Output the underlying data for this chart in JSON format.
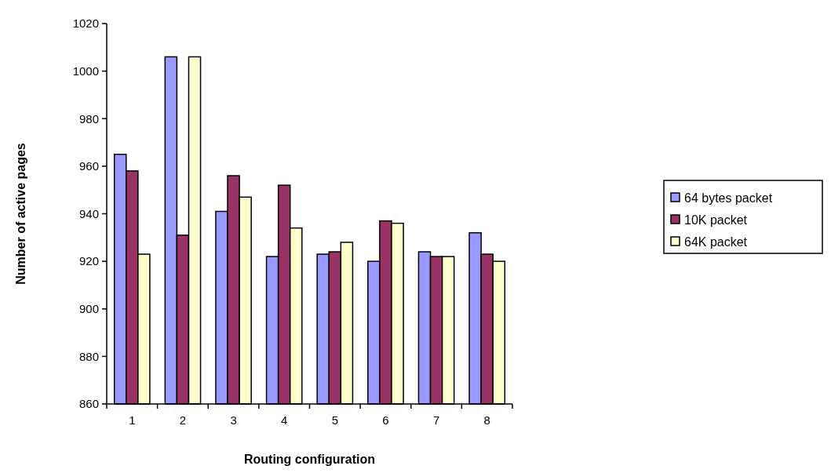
{
  "chart_data": {
    "type": "bar",
    "xlabel": "Routing configuration",
    "ylabel": "Number of active pages",
    "categories": [
      "1",
      "2",
      "3",
      "4",
      "5",
      "6",
      "7",
      "8"
    ],
    "series": [
      {
        "name": "64 bytes packet",
        "color": "#9999ff",
        "values": [
          965,
          1006,
          941,
          922,
          923,
          920,
          924,
          932
        ]
      },
      {
        "name": "10K packet",
        "color": "#993366",
        "values": [
          958,
          931,
          956,
          952,
          924,
          937,
          922,
          923
        ]
      },
      {
        "name": "64K packet",
        "color": "#ffffcc",
        "values": [
          923,
          1006,
          947,
          934,
          928,
          936,
          922,
          920
        ]
      }
    ],
    "ylim": [
      860,
      1020
    ],
    "yticks": [
      860,
      880,
      900,
      920,
      940,
      960,
      980,
      1000,
      1020
    ],
    "grid": false,
    "legend": "right"
  }
}
